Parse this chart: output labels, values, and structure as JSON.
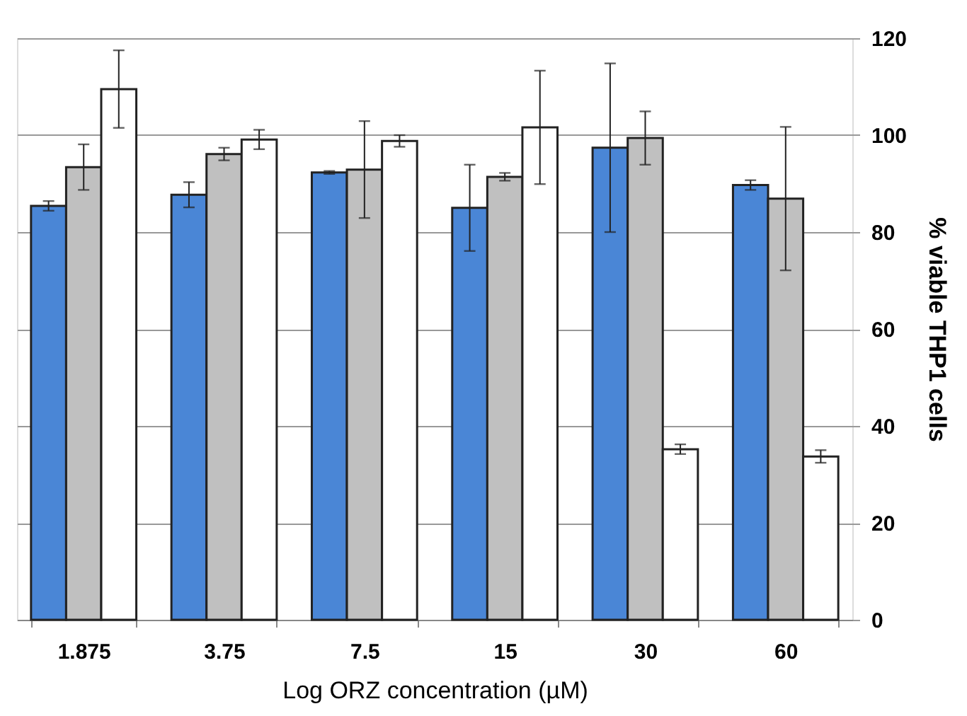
{
  "chart_data": {
    "type": "bar",
    "xlabel": "Log ORZ concentration (µM)",
    "ylabel": "% viable THP1 cells",
    "categories": [
      "1.875",
      "3.75",
      "7.5",
      "15",
      "30",
      "60"
    ],
    "series": [
      {
        "color": "#4a86d6",
        "values": [
          85.4,
          87.7,
          92.3,
          85,
          97.4,
          89.7
        ],
        "errors": [
          1,
          2.6,
          0.3,
          8.9,
          17.4,
          1
        ]
      },
      {
        "color": "#c0c0c0",
        "values": [
          93.4,
          96.1,
          92.9,
          91.4,
          99.4,
          86.9
        ],
        "errors": [
          4.7,
          1.3,
          10,
          0.8,
          5.5,
          14.8
        ]
      },
      {
        "color": "#ffffff",
        "values": [
          109.5,
          99.1,
          98.8,
          101.6,
          35.2,
          33.7
        ],
        "errors": [
          8,
          2,
          1.2,
          11.7,
          1,
          1.3
        ]
      }
    ],
    "ylim": [
      0,
      120
    ],
    "yticks": [
      0,
      20,
      40,
      60,
      80,
      100,
      120
    ],
    "grid": "y"
  }
}
